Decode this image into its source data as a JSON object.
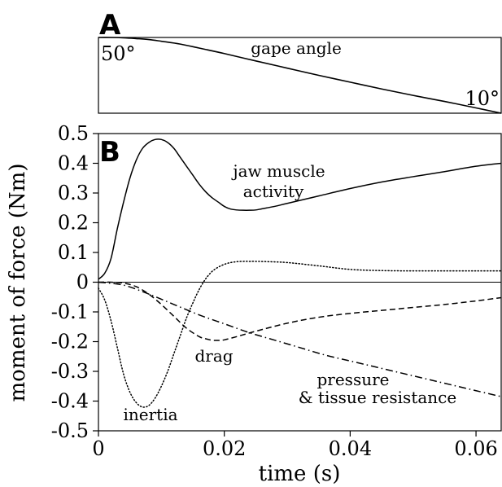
{
  "panels": {
    "a": {
      "letter": "A",
      "start_angle": "50°",
      "end_angle": "10°",
      "curve_label": "gape angle"
    },
    "b": {
      "letter": "B"
    }
  },
  "chart_data": {
    "type": "line",
    "title": "",
    "xlabel": "time (s)",
    "ylabel": "moment of force (Nm)",
    "xlim": [
      0,
      0.064
    ],
    "ylim": [
      -0.5,
      0.5
    ],
    "xticks": [
      0,
      0.02,
      0.04,
      0.06
    ],
    "xtick_labels": [
      "0",
      "0.02",
      "0.04",
      "0.06"
    ],
    "yticks": [
      0.5,
      0.4,
      0.3,
      0.2,
      0.1,
      0,
      -0.1,
      -0.2,
      -0.3,
      -0.4,
      -0.5
    ],
    "ytick_labels": [
      "0.5",
      "0.4",
      "0.3",
      "0.2",
      "0.1",
      "0",
      "-0.1",
      "-0.2",
      "-0.3",
      "-0.4",
      "-0.5"
    ],
    "grid": false,
    "zero_line": true,
    "series": [
      {
        "name": "jaw muscle activity",
        "label_lines": [
          "jaw muscle",
          "activity"
        ],
        "style": "solid",
        "x": [
          0,
          0.001,
          0.002,
          0.003,
          0.004,
          0.005,
          0.006,
          0.007,
          0.008,
          0.009,
          0.01,
          0.011,
          0.012,
          0.013,
          0.014,
          0.015,
          0.016,
          0.017,
          0.018,
          0.019,
          0.02,
          0.021,
          0.022,
          0.023,
          0.024,
          0.025,
          0.026,
          0.028,
          0.03,
          0.035,
          0.04,
          0.045,
          0.05,
          0.055,
          0.06,
          0.064
        ],
        "y": [
          0.01,
          0.03,
          0.08,
          0.18,
          0.27,
          0.35,
          0.41,
          0.45,
          0.47,
          0.48,
          0.48,
          0.47,
          0.45,
          0.42,
          0.39,
          0.36,
          0.33,
          0.305,
          0.285,
          0.27,
          0.255,
          0.246,
          0.243,
          0.242,
          0.242,
          0.243,
          0.247,
          0.255,
          0.265,
          0.29,
          0.315,
          0.337,
          0.355,
          0.372,
          0.39,
          0.4
        ]
      },
      {
        "name": "inertia",
        "label_lines": [
          "inertia"
        ],
        "style": "dotted",
        "x": [
          0,
          0.001,
          0.002,
          0.003,
          0.004,
          0.005,
          0.006,
          0.007,
          0.008,
          0.009,
          0.01,
          0.011,
          0.012,
          0.013,
          0.014,
          0.015,
          0.016,
          0.017,
          0.018,
          0.019,
          0.02,
          0.021,
          0.022,
          0.023,
          0.024,
          0.025,
          0.027,
          0.03,
          0.035,
          0.04,
          0.045,
          0.05,
          0.055,
          0.06,
          0.064
        ],
        "y": [
          -0.02,
          -0.06,
          -0.13,
          -0.22,
          -0.31,
          -0.37,
          -0.405,
          -0.42,
          -0.415,
          -0.39,
          -0.35,
          -0.3,
          -0.24,
          -0.18,
          -0.12,
          -0.07,
          -0.025,
          0.01,
          0.035,
          0.05,
          0.06,
          0.066,
          0.069,
          0.07,
          0.07,
          0.07,
          0.069,
          0.066,
          0.055,
          0.043,
          0.039,
          0.038,
          0.038,
          0.038,
          0.038
        ]
      },
      {
        "name": "drag",
        "label_lines": [
          "drag"
        ],
        "style": "dashed",
        "x": [
          0,
          0.002,
          0.004,
          0.006,
          0.008,
          0.01,
          0.012,
          0.014,
          0.016,
          0.017,
          0.018,
          0.019,
          0.02,
          0.022,
          0.025,
          0.03,
          0.035,
          0.04,
          0.045,
          0.05,
          0.055,
          0.06,
          0.064
        ],
        "y": [
          0,
          0,
          -0.003,
          -0.015,
          -0.04,
          -0.075,
          -0.115,
          -0.155,
          -0.183,
          -0.19,
          -0.195,
          -0.196,
          -0.194,
          -0.183,
          -0.165,
          -0.138,
          -0.118,
          -0.105,
          -0.095,
          -0.085,
          -0.075,
          -0.063,
          -0.052
        ]
      },
      {
        "name": "pressure & tissue resistance",
        "label_lines": [
          "pressure",
          "& tissue resistance"
        ],
        "style": "dashdot",
        "x": [
          0,
          0.004,
          0.008,
          0.012,
          0.016,
          0.02,
          0.024,
          0.028,
          0.032,
          0.036,
          0.04,
          0.044,
          0.048,
          0.052,
          0.056,
          0.06,
          0.064
        ],
        "y": [
          0,
          -0.01,
          -0.04,
          -0.075,
          -0.11,
          -0.14,
          -0.17,
          -0.195,
          -0.22,
          -0.245,
          -0.265,
          -0.285,
          -0.305,
          -0.325,
          -0.345,
          -0.365,
          -0.385
        ]
      }
    ],
    "gape_angle": {
      "name": "gape angle",
      "unit": "°",
      "ylim": [
        10,
        50
      ],
      "x": [
        0,
        0.002,
        0.004,
        0.006,
        0.008,
        0.01,
        0.013,
        0.016,
        0.02,
        0.025,
        0.03,
        0.035,
        0.04,
        0.045,
        0.05,
        0.055,
        0.06,
        0.064
      ],
      "y": [
        50,
        50,
        49.8,
        49.4,
        48.9,
        48.0,
        46.5,
        44.4,
        41.5,
        37.6,
        33.8,
        30.0,
        26.4,
        22.8,
        19.4,
        16.2,
        12.8,
        10
      ]
    }
  }
}
